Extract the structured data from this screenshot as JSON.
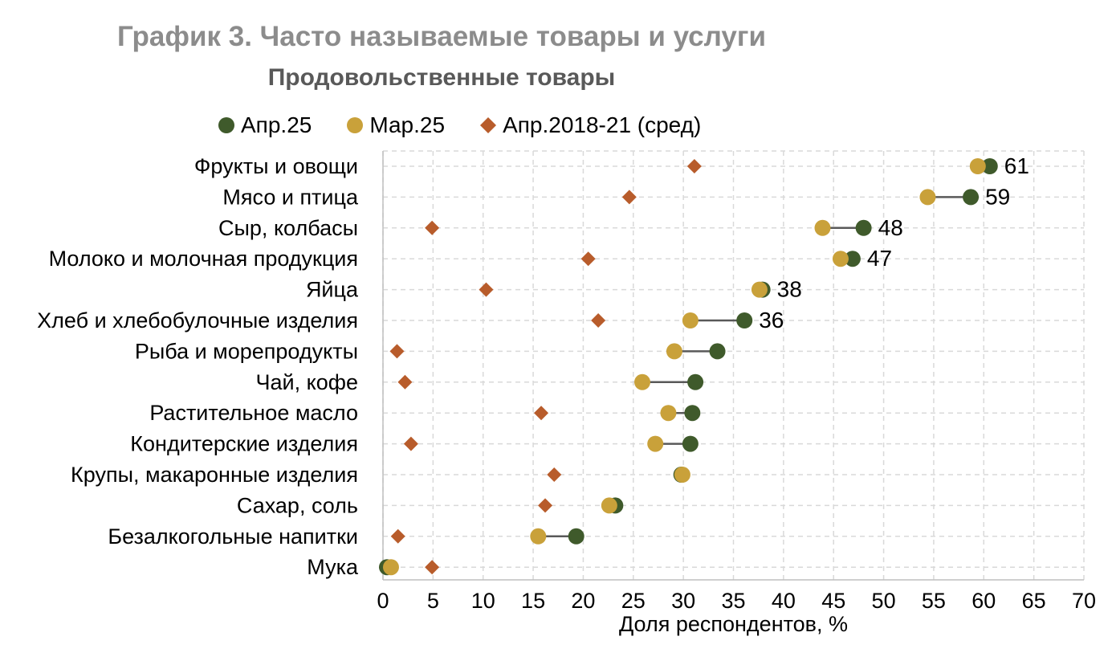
{
  "chart_data": {
    "type": "scatter",
    "title": "График 3. Часто называемые товары и услуги",
    "subtitle": "Продовольственные товары",
    "xlabel": "Доля респондентов, %",
    "xlim": [
      0,
      70
    ],
    "xticks": [
      0,
      5,
      10,
      15,
      20,
      25,
      30,
      35,
      40,
      45,
      50,
      55,
      60,
      65,
      70
    ],
    "grid": true,
    "legend_position": "top",
    "categories": [
      "Фрукты и овощи",
      "Мясо и птица",
      "Сыр, колбасы",
      "Молоко и молочная продукция",
      "Яйца",
      "Хлеб и хлебобулочные изделия",
      "Рыба и морепродукты",
      "Чай, кофе",
      "Растительное масло",
      "Кондитерские изделия",
      "Крупы, макаронные изделия",
      "Сахар, соль",
      "Безалкогольные напитки",
      "Мука"
    ],
    "series": [
      {
        "name": "Апр.25",
        "color": "#3f5a2b",
        "marker": "circle",
        "values": [
          60.6,
          58.7,
          48,
          46.9,
          37.9,
          36.1,
          33.4,
          31.2,
          30.9,
          30.7,
          29.8,
          23.2,
          19.3,
          0.4
        ]
      },
      {
        "name": "Мар.25",
        "color": "#c9a13a",
        "marker": "circle",
        "values": [
          59.4,
          54.4,
          43.9,
          45.7,
          37.6,
          30.7,
          29.1,
          25.9,
          28.5,
          27.2,
          29.9,
          22.6,
          15.5,
          0.8
        ]
      },
      {
        "name": "Апр.2018-21 (сред)",
        "color": "#b85c2b",
        "marker": "diamond",
        "values": [
          31.1,
          24.6,
          4.9,
          20.5,
          10.3,
          21.5,
          1.4,
          2.2,
          15.8,
          2.8,
          17.1,
          16.2,
          1.5,
          4.9
        ]
      }
    ],
    "data_labels": [
      "61",
      "59",
      "48",
      "47",
      "38",
      "36",
      "",
      "",
      "",
      "",
      "",
      "",
      "",
      ""
    ],
    "connector_color": "#595959",
    "grid_color": "#d9d9d9"
  }
}
